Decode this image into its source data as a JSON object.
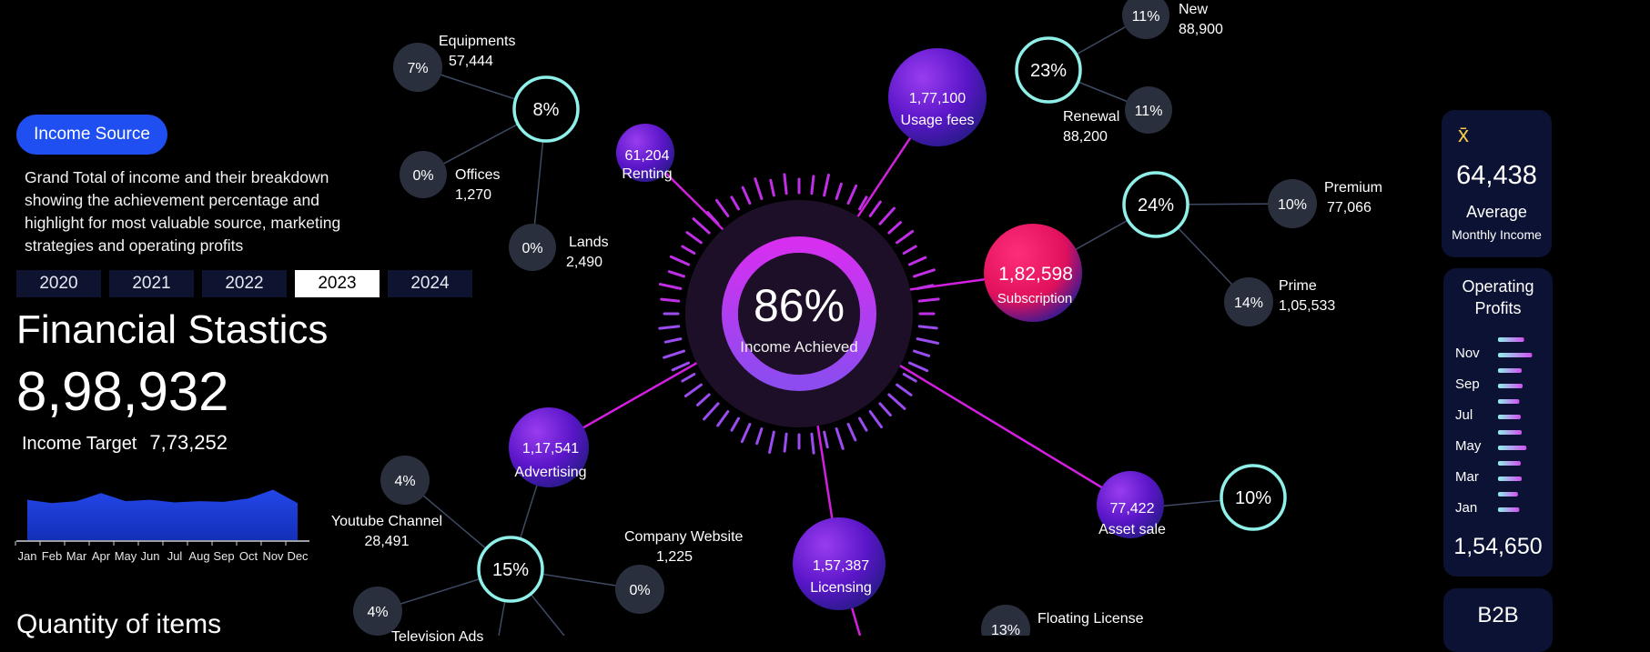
{
  "sidebar": {
    "badge": "Income Source",
    "description": "Grand Total of income and their breakdown showing the achievement percentage and highlight for most valuable source, marketing strategies and operating profits",
    "years": [
      "2020",
      "2021",
      "2022",
      "2023",
      "2024"
    ],
    "active_year": "2023",
    "title": "Financial Stastics",
    "total": "8,98,932",
    "target_label": "Income Target",
    "target_value": "7,73,252",
    "next_section_title": "Quantity of items"
  },
  "chart_data": {
    "type": "area",
    "categories": [
      "Jan",
      "Feb",
      "Mar",
      "Apr",
      "May",
      "Jun",
      "Jul",
      "Aug",
      "Sep",
      "Oct",
      "Nov",
      "Dec"
    ],
    "values": [
      60,
      55,
      58,
      70,
      58,
      60,
      56,
      58,
      57,
      62,
      75,
      55
    ],
    "ylim": [
      0,
      100
    ],
    "color": "#2346e8"
  },
  "center": {
    "percent": "86%",
    "label": "Income Achieved"
  },
  "sources": {
    "renting": {
      "value": "61,204",
      "name": "Renting",
      "ring": "8%",
      "children": [
        {
          "pct": "7%",
          "name": "Equipments",
          "value": "57,444"
        },
        {
          "pct": "0%",
          "name": "Offices",
          "value": "1,270"
        },
        {
          "pct": "0%",
          "name": "Lands",
          "value": "2,490"
        }
      ]
    },
    "usage": {
      "value": "1,77,100",
      "name": "Usage fees",
      "ring": "23%",
      "children": [
        {
          "pct": "11%",
          "name": "New",
          "value": "88,900"
        },
        {
          "pct": "11%",
          "name": "Renewal",
          "value": "88,200"
        }
      ]
    },
    "subscription": {
      "value": "1,82,598",
      "name": "Subscription",
      "ring": "24%",
      "children": [
        {
          "pct": "10%",
          "name": "Premium",
          "value": "77,066"
        },
        {
          "pct": "14%",
          "name": "Prime",
          "value": "1,05,533"
        }
      ]
    },
    "advertising": {
      "value": "1,17,541",
      "name": "Advertising",
      "ring": "15%",
      "children": [
        {
          "pct": "4%",
          "name": "Youtube Channel",
          "value": "28,491"
        },
        {
          "pct": "0%",
          "name": "Company Website",
          "value": "1,225"
        },
        {
          "pct": "4%",
          "name": "Television Ads",
          "value": ""
        }
      ]
    },
    "licensing": {
      "value": "1,57,387",
      "name": "Licensing",
      "children": [
        {
          "pct": "13%",
          "name": "Floating License",
          "value": ""
        }
      ]
    },
    "asset": {
      "value": "77,422",
      "name": "Asset sale",
      "ring": "10%"
    }
  },
  "average": {
    "symbol": "x̄",
    "value": "64,438",
    "label": "Average",
    "sublabel": "Monthly Income"
  },
  "operating": {
    "title": "Operating Profits",
    "months": [
      "Nov",
      "Sep",
      "Jul",
      "May",
      "Mar",
      "Jan"
    ],
    "bars": [
      0.55,
      0.72,
      0.5,
      0.52,
      0.45,
      0.48,
      0.5,
      0.6,
      0.48,
      0.5,
      0.42,
      0.45
    ],
    "total": "1,54,650"
  },
  "next_card": {
    "title": "B2B"
  },
  "colors": {
    "accent": "#1f4ff0",
    "ring": "#8ff0ea",
    "line": "#d21fe0",
    "node": "#2a2f3d"
  }
}
